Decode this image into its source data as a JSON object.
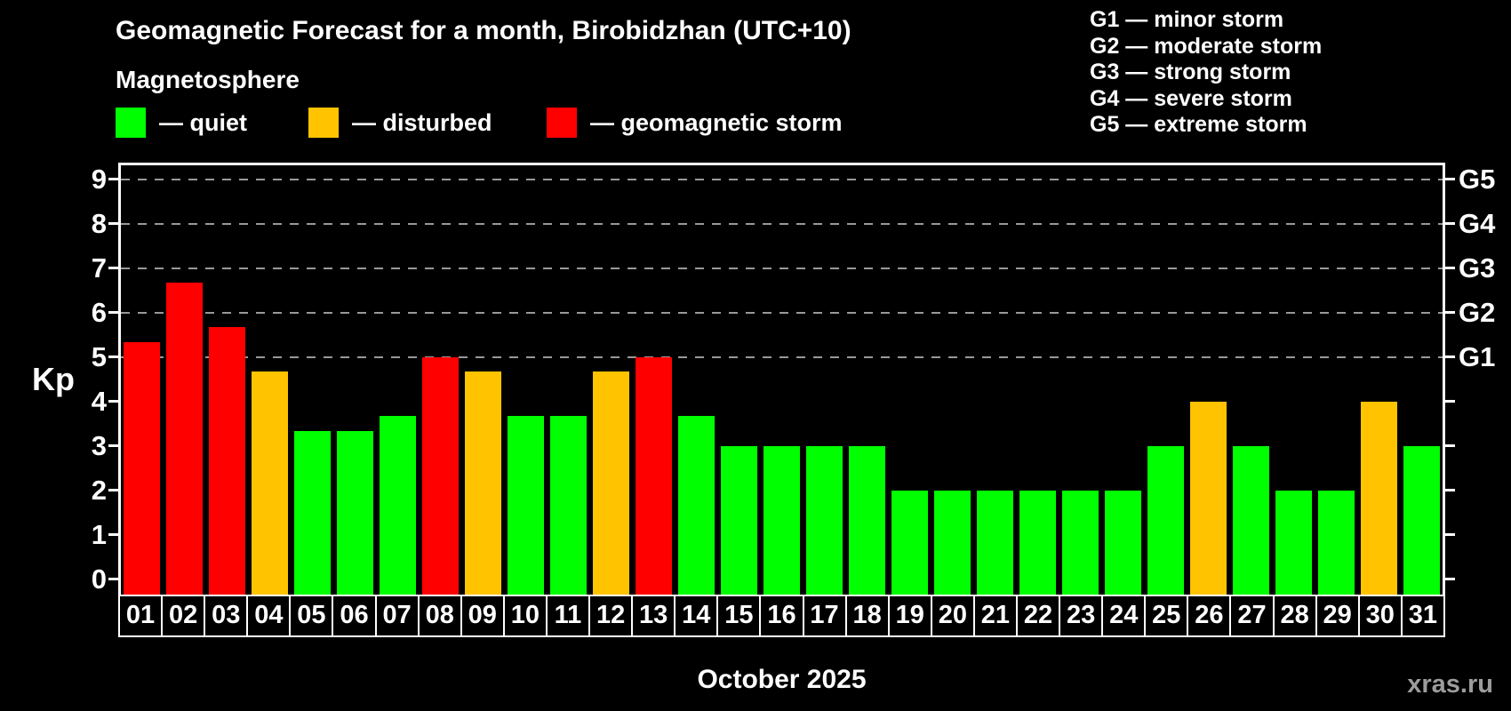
{
  "title": "Geomagnetic Forecast for a month, Birobidzhan (UTC+10)",
  "subtitle": "Magnetosphere",
  "legend": {
    "items": [
      {
        "key": "quiet",
        "label": "— quiet",
        "color": "#00ff00"
      },
      {
        "key": "disturbed",
        "label": "— disturbed",
        "color": "#ffc300"
      },
      {
        "key": "storm",
        "label": "— geomagnetic storm",
        "color": "#ff0000"
      }
    ]
  },
  "g_scale_legend": [
    "G1 — minor storm",
    "G2 — moderate storm",
    "G3 — strong storm",
    "G4 — severe storm",
    "G5 — extreme storm"
  ],
  "watermark": "xras.ru",
  "chart_data": {
    "type": "bar",
    "title": "Geomagnetic Forecast for a month, Birobidzhan (UTC+10)",
    "subtitle": "Magnetosphere",
    "ylabel": "Kp",
    "xlabel": "October 2025",
    "ylim": [
      0,
      9
    ],
    "y_ticks": [
      0,
      1,
      2,
      3,
      4,
      5,
      6,
      7,
      8,
      9
    ],
    "gridlines_at": [
      5,
      6,
      7,
      8,
      9
    ],
    "grid_style": "dashed horizontal gray lines at G1–G5 levels only",
    "legend_position": "top-left",
    "right_axis_labels": [
      {
        "value": 5,
        "label": "G1"
      },
      {
        "value": 6,
        "label": "G2"
      },
      {
        "value": 7,
        "label": "G3"
      },
      {
        "value": 8,
        "label": "G4"
      },
      {
        "value": 9,
        "label": "G5"
      }
    ],
    "categories": [
      "01",
      "02",
      "03",
      "04",
      "05",
      "06",
      "07",
      "08",
      "09",
      "10",
      "11",
      "12",
      "13",
      "14",
      "15",
      "16",
      "17",
      "18",
      "19",
      "20",
      "21",
      "22",
      "23",
      "24",
      "25",
      "26",
      "27",
      "28",
      "29",
      "30",
      "31"
    ],
    "values": [
      5.33,
      6.67,
      5.67,
      4.67,
      3.33,
      3.33,
      3.67,
      5.0,
      4.67,
      3.67,
      3.67,
      4.67,
      5.0,
      3.67,
      3.0,
      3.0,
      3.0,
      3.0,
      2.0,
      2.0,
      2.0,
      2.0,
      2.0,
      2.0,
      3.0,
      4.0,
      3.0,
      2.0,
      2.0,
      4.0,
      3.0
    ],
    "statuses": [
      "storm",
      "storm",
      "storm",
      "disturbed",
      "quiet",
      "quiet",
      "quiet",
      "storm",
      "disturbed",
      "quiet",
      "quiet",
      "disturbed",
      "storm",
      "quiet",
      "quiet",
      "quiet",
      "quiet",
      "quiet",
      "quiet",
      "quiet",
      "quiet",
      "quiet",
      "quiet",
      "quiet",
      "quiet",
      "disturbed",
      "quiet",
      "quiet",
      "quiet",
      "disturbed",
      "quiet"
    ],
    "colors": {
      "quiet": "#00ff00",
      "disturbed": "#ffc300",
      "storm": "#ff0000"
    }
  }
}
